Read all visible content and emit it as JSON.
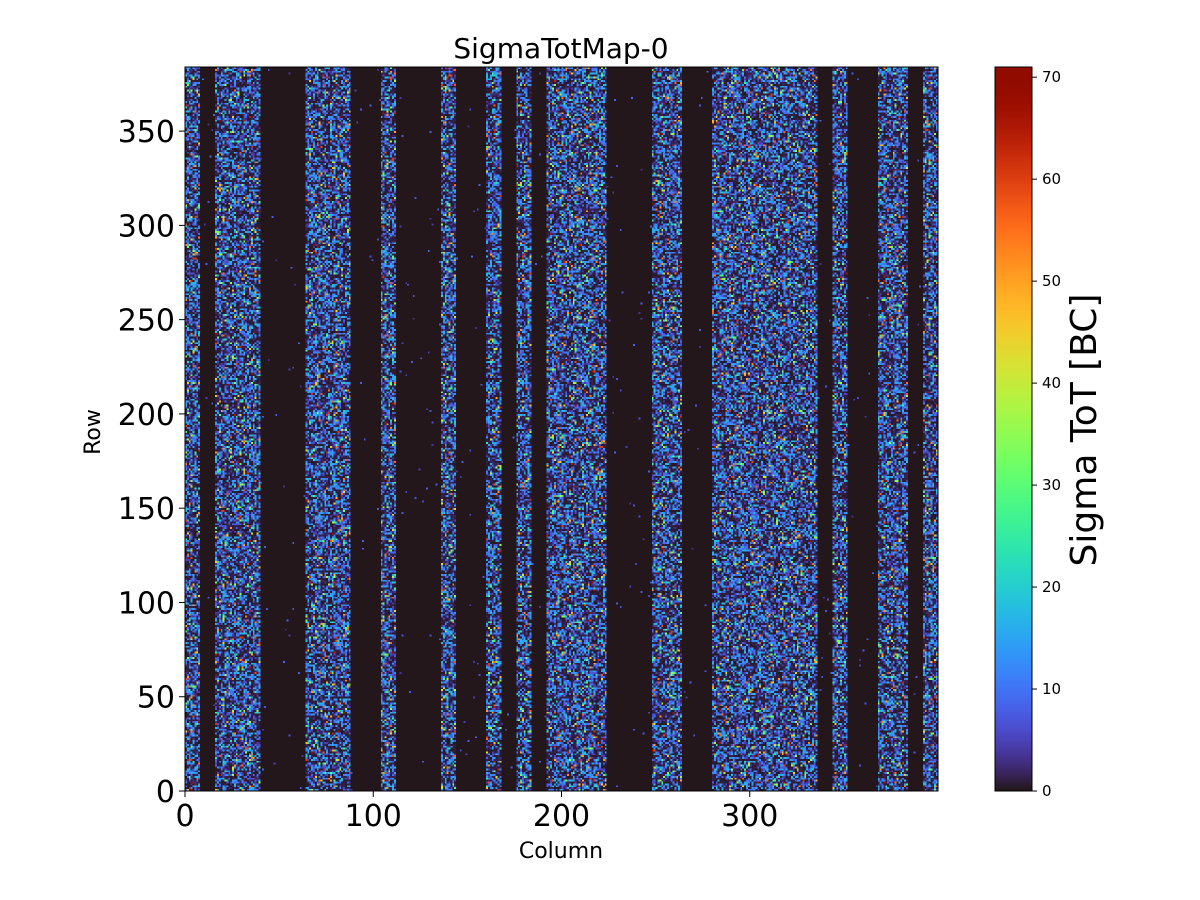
{
  "chart_data": {
    "type": "heatmap",
    "title": "SigmaTotMap-0",
    "xlabel": "Column",
    "ylabel": "Row",
    "xlim": [
      0,
      400
    ],
    "ylim": [
      0,
      384
    ],
    "x_ticks": [
      0,
      100,
      200,
      300
    ],
    "y_ticks": [
      0,
      50,
      100,
      150,
      200,
      250,
      300,
      350
    ],
    "colormap": "turbo",
    "colorbar": {
      "label": "Sigma ToT [BC]",
      "range": [
        0,
        71
      ],
      "ticks": [
        0,
        10,
        20,
        30,
        40,
        50,
        60,
        70
      ]
    },
    "active_column_bands": [
      [
        0,
        8
      ],
      [
        16,
        40
      ],
      [
        64,
        88
      ],
      [
        104,
        112
      ],
      [
        136,
        144
      ],
      [
        160,
        168
      ],
      [
        176,
        184
      ],
      [
        192,
        224
      ],
      [
        248,
        264
      ],
      [
        280,
        336
      ],
      [
        344,
        352
      ],
      [
        368,
        384
      ],
      [
        392,
        400
      ]
    ],
    "inactive_value": 0,
    "active_value_description": "noisy random values mostly 0-20 BC with sparse outliers up to ~70 BC"
  }
}
